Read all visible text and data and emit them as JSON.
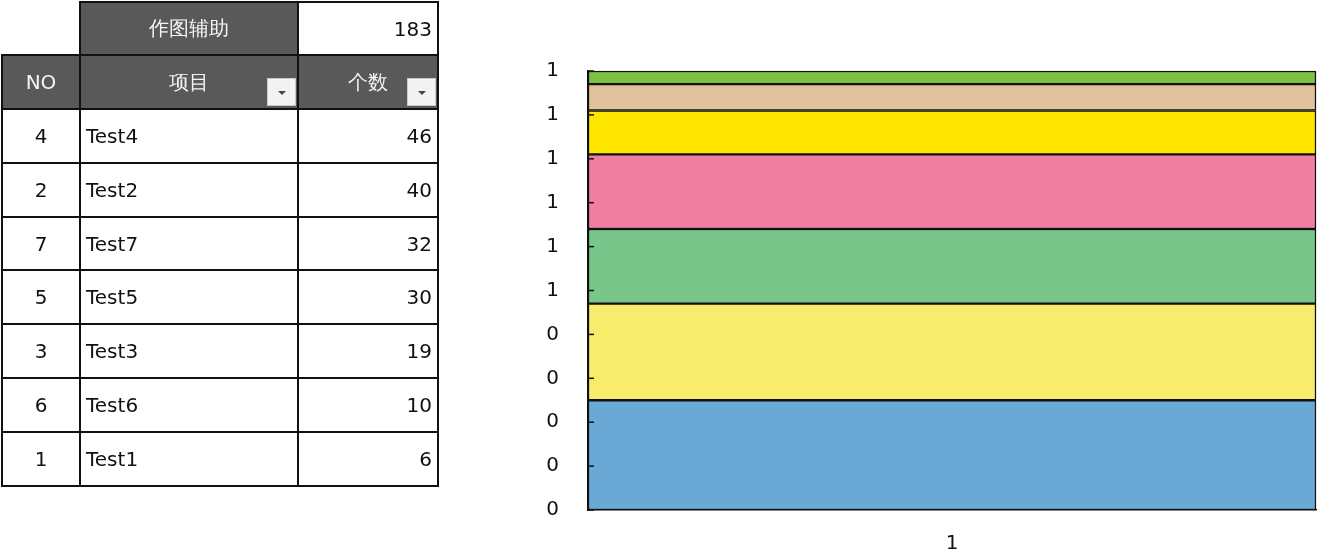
{
  "chart_data": [
    {
      "type": "other",
      "annotations": [
        "作图辅助",
        "183",
        "NO",
        "项目",
        "个数",
        "4",
        "Test4",
        "46",
        "2",
        "Test2",
        "40",
        "7",
        "Test7",
        "32",
        "5",
        "Test5",
        "30",
        "3",
        "Test3",
        "19",
        "6",
        "Test6",
        "10",
        "1",
        "Test1",
        "6"
      ]
    },
    {
      "type": "bar",
      "stacked": true,
      "categories": [
        "1"
      ],
      "series": [
        {
          "color": "#6aa8d6",
          "values": [
            0.25
          ]
        },
        {
          "color": "#f7ec6c",
          "values": [
            0.22
          ]
        },
        {
          "color": "#78c68a",
          "values": [
            0.17
          ]
        },
        {
          "color": "#f07ea0",
          "values": [
            0.17
          ]
        },
        {
          "color": "#ffe600",
          "values": [
            0.1
          ]
        },
        {
          "color": "#e0c39a",
          "values": [
            0.06
          ]
        },
        {
          "color": "#7cc142",
          "values": [
            0.03
          ]
        }
      ],
      "ylim": [
        0,
        1
      ],
      "yticks": [
        0,
        {
          "value": 0.1,
          "label": "0"
        },
        {
          "value": 0.2,
          "label": "0"
        },
        {
          "value": 0.3,
          "label": "0"
        },
        {
          "value": 0.4,
          "label": "0"
        },
        {
          "value": 0.5,
          "label": "1"
        },
        {
          "value": 0.6,
          "label": "1"
        },
        {
          "value": 0.7,
          "label": "1"
        },
        {
          "value": 0.8,
          "label": "1"
        },
        {
          "value": 0.9,
          "label": "1"
        },
        1
      ]
    }
  ]
}
